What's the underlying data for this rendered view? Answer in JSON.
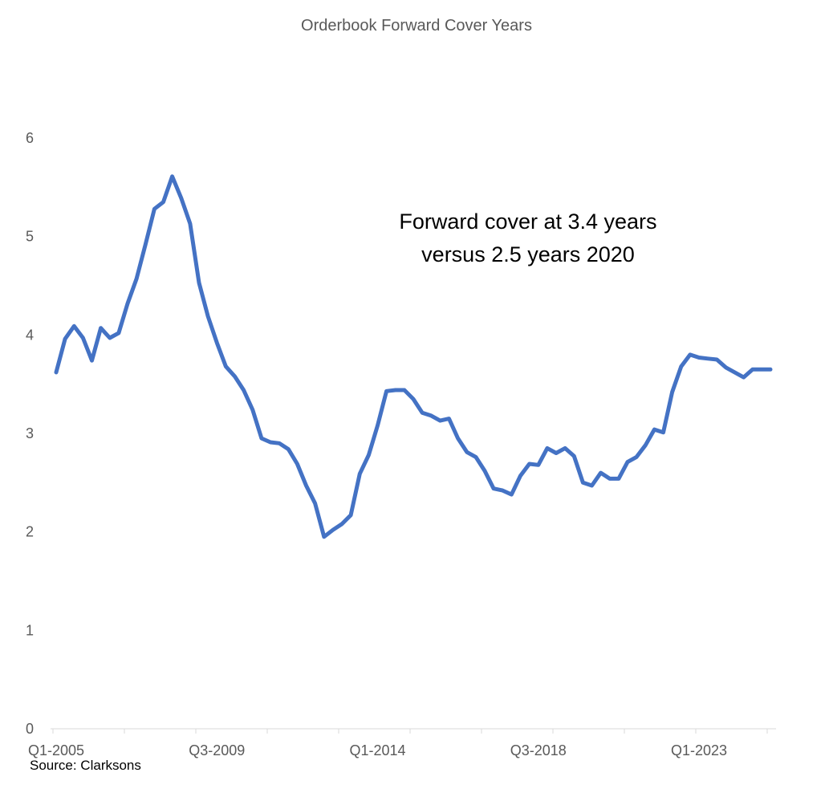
{
  "chart_data": {
    "type": "line",
    "title": "Orderbook Forward Cover Years",
    "xlabel": "",
    "ylabel": "",
    "ylim": [
      0,
      6
    ],
    "yticks": [
      "0",
      "1",
      "2",
      "3",
      "4",
      "5",
      "6"
    ],
    "x_tick_labels": [
      "Q1-2005",
      "Q3-2009",
      "Q1-2014",
      "Q3-2018",
      "Q1-2023"
    ],
    "grid": false,
    "legend": "none",
    "line_color": "#4472C4",
    "annotation": [
      "Forward cover at 3.4 years",
      "versus 2.5 years 2020"
    ],
    "x": [
      "Q1-2005",
      "Q2-2005",
      "Q3-2005",
      "Q4-2005",
      "Q1-2006",
      "Q2-2006",
      "Q3-2006",
      "Q4-2006",
      "Q1-2007",
      "Q2-2007",
      "Q3-2007",
      "Q4-2007",
      "Q1-2008",
      "Q2-2008",
      "Q3-2008",
      "Q4-2008",
      "Q1-2009",
      "Q2-2009",
      "Q3-2009",
      "Q4-2009",
      "Q1-2010",
      "Q2-2010",
      "Q3-2010",
      "Q4-2010",
      "Q1-2011",
      "Q2-2011",
      "Q3-2011",
      "Q4-2011",
      "Q1-2012",
      "Q2-2012",
      "Q3-2012",
      "Q4-2012",
      "Q1-2013",
      "Q2-2013",
      "Q3-2013",
      "Q4-2013",
      "Q1-2014",
      "Q2-2014",
      "Q3-2014",
      "Q4-2014",
      "Q1-2015",
      "Q2-2015",
      "Q3-2015",
      "Q4-2015",
      "Q1-2016",
      "Q2-2016",
      "Q3-2016",
      "Q4-2016",
      "Q1-2017",
      "Q2-2017",
      "Q3-2017",
      "Q4-2017",
      "Q1-2018",
      "Q2-2018",
      "Q3-2018",
      "Q4-2018",
      "Q1-2019",
      "Q2-2019",
      "Q3-2019",
      "Q4-2019",
      "Q1-2020",
      "Q2-2020",
      "Q3-2020",
      "Q4-2020",
      "Q1-2021",
      "Q2-2021",
      "Q3-2021",
      "Q4-2021",
      "Q1-2022",
      "Q2-2022",
      "Q3-2022",
      "Q4-2022",
      "Q1-2023",
      "Q2-2023",
      "Q3-2023",
      "Q4-2023",
      "Q1-2024",
      "Q2-2024",
      "Q3-2024",
      "Q4-2024",
      "Q1-2025"
    ],
    "values": [
      3.62,
      3.96,
      4.09,
      3.97,
      3.74,
      4.07,
      3.97,
      4.02,
      4.32,
      4.57,
      4.92,
      5.28,
      5.35,
      5.61,
      5.39,
      5.13,
      4.53,
      4.19,
      3.92,
      3.68,
      3.58,
      3.44,
      3.24,
      2.95,
      2.91,
      2.9,
      2.84,
      2.69,
      2.47,
      2.29,
      1.95,
      2.02,
      2.08,
      2.17,
      2.59,
      2.78,
      3.08,
      3.43,
      3.44,
      3.44,
      3.35,
      3.21,
      3.18,
      3.13,
      3.15,
      2.95,
      2.81,
      2.76,
      2.62,
      2.44,
      2.42,
      2.38,
      2.57,
      2.69,
      2.68,
      2.85,
      2.8,
      2.85,
      2.77,
      2.5,
      2.47,
      2.6,
      2.54,
      2.54,
      2.71,
      2.76,
      2.88,
      3.04,
      3.01,
      3.42,
      3.68,
      3.8,
      3.77,
      3.76,
      3.75,
      3.67,
      3.62,
      3.57,
      3.65,
      3.65,
      3.65
    ]
  },
  "source": "Source: Clarksons"
}
